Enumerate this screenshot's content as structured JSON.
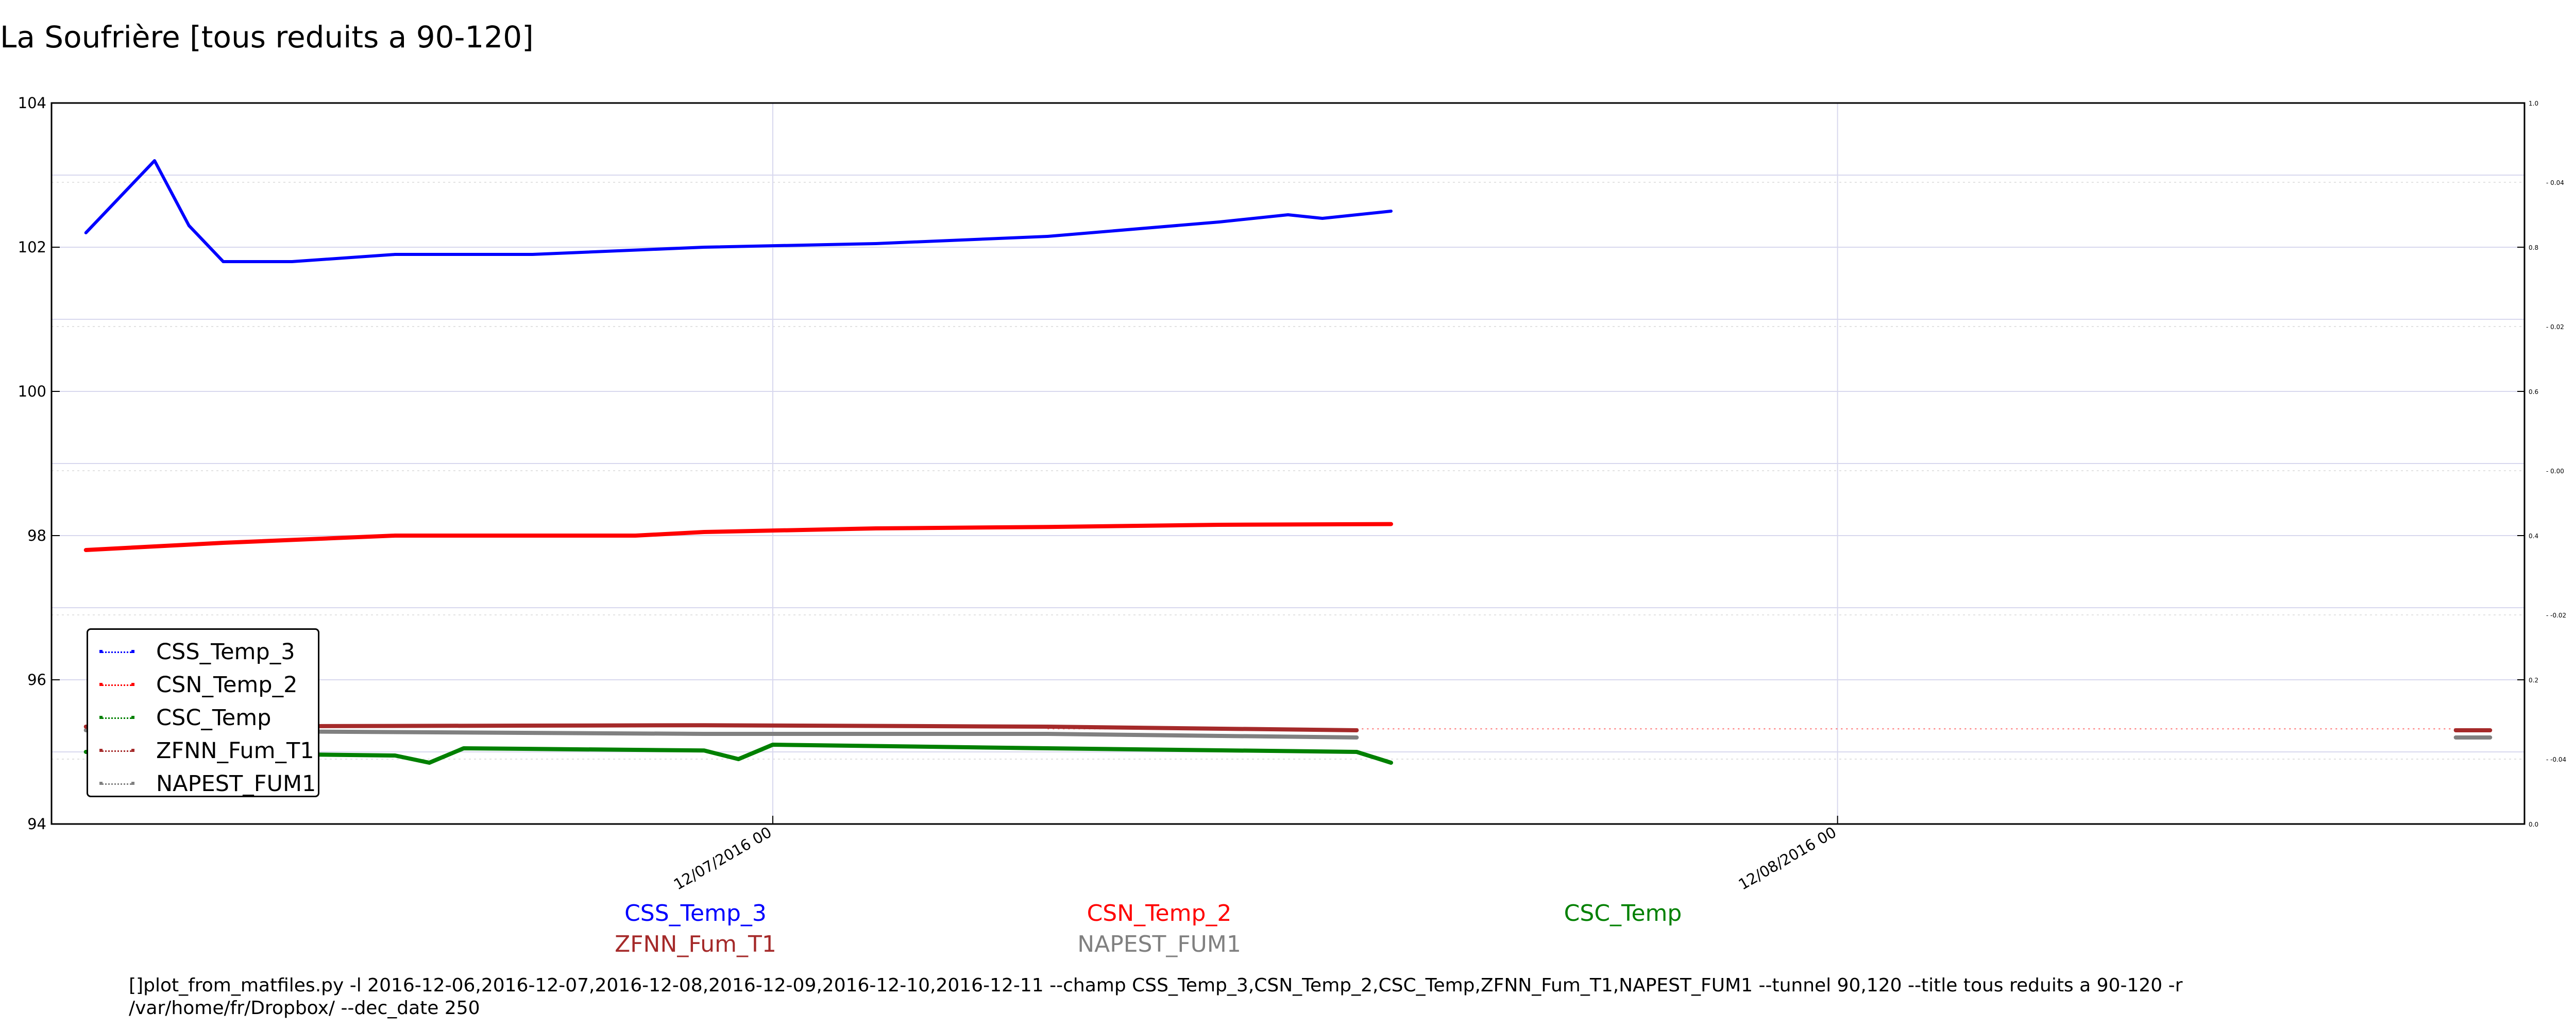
{
  "title": "La Soufrière [tous reduits a 90-120]",
  "chart_data": {
    "type": "line",
    "title": "La Soufrière [tous reduits a 90-120]",
    "x_range": [
      "2016-06-21",
      "2016-09-01"
    ],
    "x_ticks": [
      "12/07/2016 00",
      "12/08/2016 00"
    ],
    "y_left": {
      "range": [
        94,
        104
      ],
      "ticks": [
        "94",
        "96",
        "98",
        "100",
        "102",
        "104"
      ]
    },
    "y_right_outer": {
      "range": [
        0.0,
        1.0
      ],
      "ticks": [
        "0.0",
        "0.2",
        "0.4",
        "0.6",
        "0.8",
        "1.0"
      ]
    },
    "y_right_inner": {
      "ticks": [
        "0.04",
        "0.02",
        "0.00",
        "-0.02",
        "-0.04"
      ]
    },
    "grid": true,
    "legend_position": "lower-left",
    "series": [
      {
        "name": "CSS_Temp_3",
        "color": "#0000ff",
        "points": [
          [
            "2016-06-22",
            102.2
          ],
          [
            "2016-06-23",
            102.7
          ],
          [
            "2016-06-24",
            103.2
          ],
          [
            "2016-06-25",
            102.3
          ],
          [
            "2016-06-26",
            101.8
          ],
          [
            "2016-06-28",
            101.8
          ],
          [
            "2016-07-01",
            101.9
          ],
          [
            "2016-07-05",
            101.9
          ],
          [
            "2016-07-10",
            102.0
          ],
          [
            "2016-07-15",
            102.05
          ],
          [
            "2016-07-20",
            102.15
          ],
          [
            "2016-07-25",
            102.35
          ],
          [
            "2016-07-27",
            102.45
          ],
          [
            "2016-07-28",
            102.4
          ],
          [
            "2016-07-30",
            102.5
          ]
        ]
      },
      {
        "name": "CSN_Temp_2",
        "color": "#ff0000",
        "points": [
          [
            "2016-06-22",
            97.8
          ],
          [
            "2016-06-26",
            97.9
          ],
          [
            "2016-07-01",
            98.0
          ],
          [
            "2016-07-05",
            98.0
          ],
          [
            "2016-07-08",
            98.0
          ],
          [
            "2016-07-10",
            98.05
          ],
          [
            "2016-07-15",
            98.1
          ],
          [
            "2016-07-20",
            98.12
          ],
          [
            "2016-07-25",
            98.15
          ],
          [
            "2016-07-30",
            98.16
          ]
        ]
      },
      {
        "name": "CSC_Temp",
        "color": "#008000",
        "points": [
          [
            "2016-06-22",
            95.0
          ],
          [
            "2016-07-01",
            94.95
          ],
          [
            "2016-07-02",
            94.85
          ],
          [
            "2016-07-03",
            95.05
          ],
          [
            "2016-07-10",
            95.02
          ],
          [
            "2016-07-11",
            94.9
          ],
          [
            "2016-07-12",
            95.1
          ],
          [
            "2016-07-20",
            95.05
          ],
          [
            "2016-07-29",
            95.0
          ],
          [
            "2016-07-30",
            94.85
          ]
        ]
      },
      {
        "name": "ZFNN_Fum_T1",
        "color": "#a52a2a",
        "points": [
          [
            "2016-06-22",
            95.35
          ],
          [
            "2016-07-10",
            95.37
          ],
          [
            "2016-07-20",
            95.35
          ],
          [
            "2016-07-29",
            95.3
          ],
          [
            "2016-08-30",
            95.3
          ],
          [
            "2016-08-31",
            95.3
          ]
        ]
      },
      {
        "name": "NAPEST_FUM1",
        "color": "#808080",
        "points": [
          [
            "2016-06-22",
            95.3
          ],
          [
            "2016-07-10",
            95.25
          ],
          [
            "2016-07-20",
            95.25
          ],
          [
            "2016-07-29",
            95.2
          ],
          [
            "2016-08-30",
            95.2
          ],
          [
            "2016-08-31",
            95.2
          ]
        ]
      }
    ]
  },
  "bottom_labels": {
    "row1": [
      "CSS_Temp_3",
      "CSN_Temp_2",
      "CSC_Temp"
    ],
    "row2": [
      "ZFNN_Fum_T1",
      "NAPEST_FUM1"
    ]
  },
  "command": "[]plot_from_matfiles.py -l 2016-12-06,2016-12-07,2016-12-08,2016-12-09,2016-12-10,2016-12-11 --champ CSS_Temp_3,CSN_Temp_2,CSC_Temp,ZFNN_Fum_T1,NAPEST_FUM1 --tunnel 90,120 --title tous reduits a 90-120 -r /var/home/fr/Dropbox/ --dec_date 250"
}
